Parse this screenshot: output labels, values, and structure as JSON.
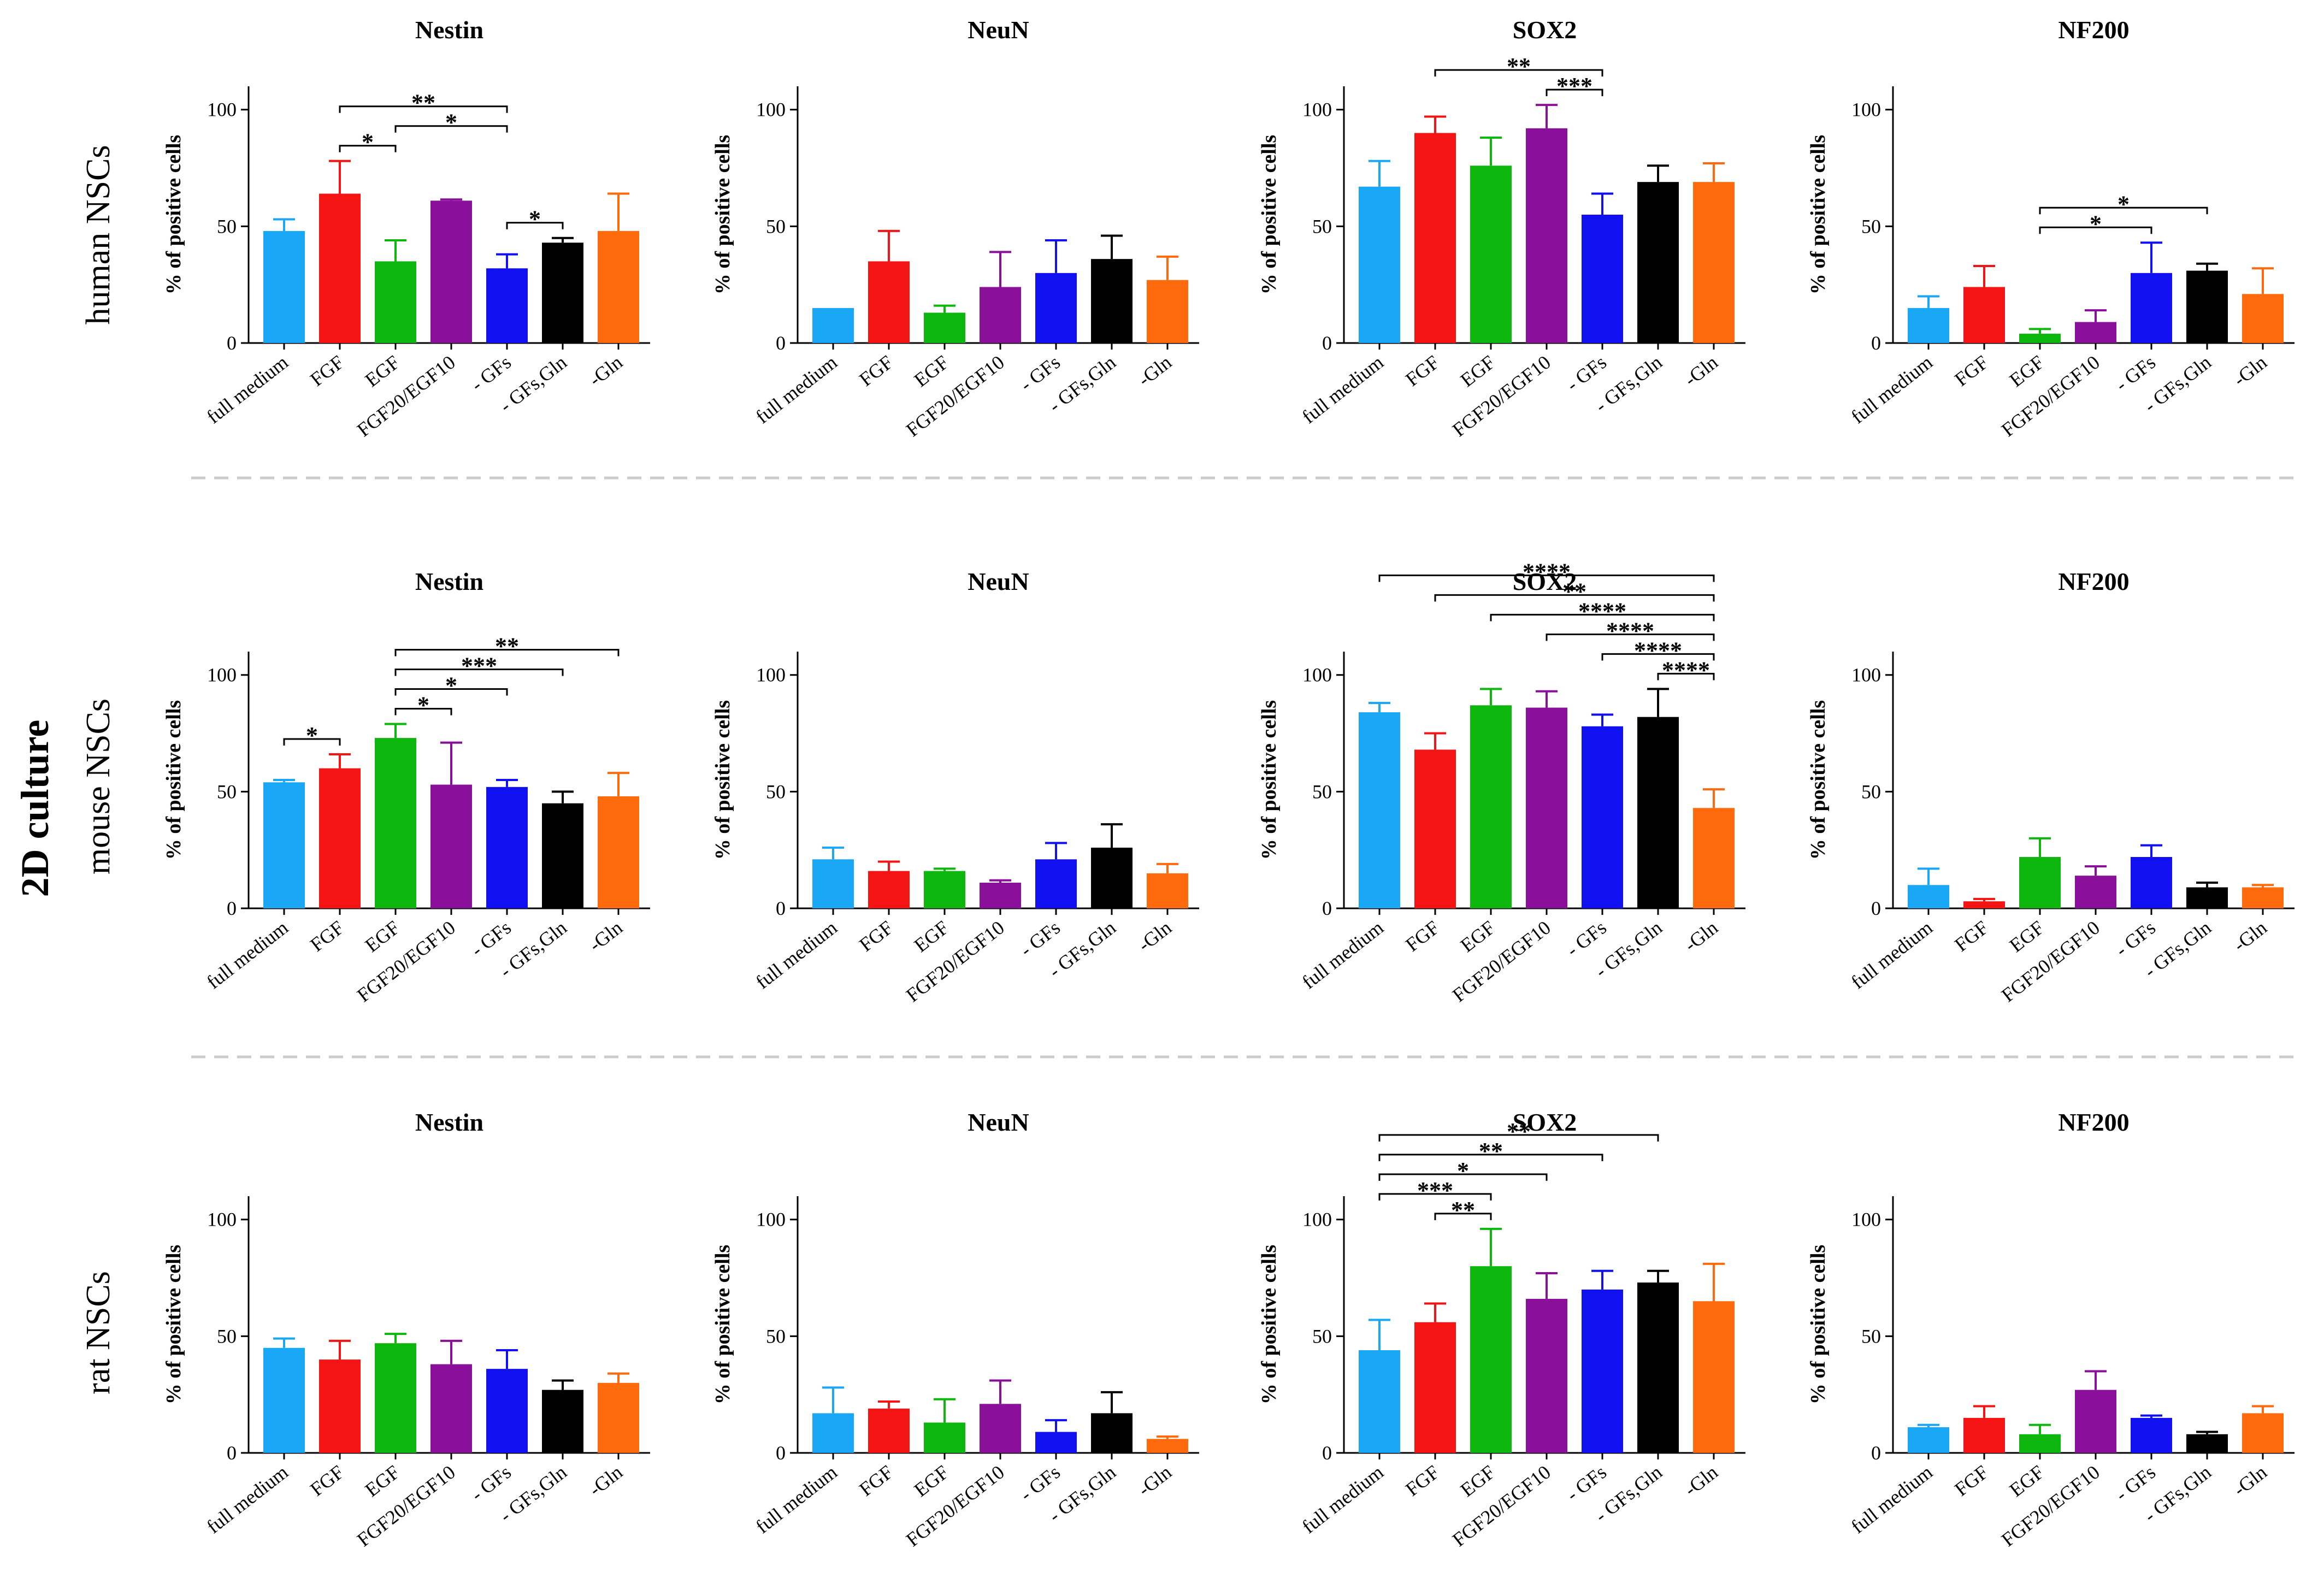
{
  "main_label": "2D culture",
  "row_labels": [
    "human NSCs",
    "mouse NSCs",
    "rat NSCs"
  ],
  "colors": {
    "full medium": "#1aa7f5",
    "FGF": "#f51414",
    "EGF": "#0db70d",
    "FGF20/EGF10": "#8a0f9a",
    "- GFs": "#1010f0",
    "- GFs,Gln": "#000000",
    "-Gln": "#ff6a0d",
    "separator": "#cccccc"
  },
  "chart_data": [
    {
      "type": "bar",
      "row": 0,
      "col": 0,
      "title": "Nestin",
      "ylabel": "% of positive cells",
      "ylim": [
        0,
        110
      ],
      "yticks": [
        0,
        50,
        100
      ],
      "categories": [
        "full medium",
        "FGF",
        "EGF",
        "FGF20/EGF10",
        "- GFs",
        "- GFs,Gln",
        "-Gln"
      ],
      "values": [
        48,
        64,
        35,
        61,
        32,
        43,
        48
      ],
      "errors": [
        5,
        14,
        9,
        0.5,
        6,
        2,
        16
      ],
      "significance": [
        {
          "from": 1,
          "to": 2,
          "label": "*"
        },
        {
          "from": 1,
          "to": 4,
          "label": "**"
        },
        {
          "from": 2,
          "to": 4,
          "label": "*"
        },
        {
          "from": 4,
          "to": 5,
          "label": "*"
        }
      ]
    },
    {
      "type": "bar",
      "row": 0,
      "col": 1,
      "title": "NeuN",
      "ylabel": "% of positive cells",
      "ylim": [
        0,
        110
      ],
      "yticks": [
        0,
        50,
        100
      ],
      "categories": [
        "full medium",
        "FGF",
        "EGF",
        "FGF20/EGF10",
        "- GFs",
        "- GFs,Gln",
        "-Gln"
      ],
      "values": [
        15,
        35,
        13,
        24,
        30,
        36,
        27
      ],
      "errors": [
        0,
        13,
        3,
        15,
        14,
        10,
        10
      ],
      "significance": []
    },
    {
      "type": "bar",
      "row": 0,
      "col": 2,
      "title": "SOX2",
      "ylabel": "% of positive cells",
      "ylim": [
        0,
        110
      ],
      "yticks": [
        0,
        50,
        100
      ],
      "categories": [
        "full medium",
        "FGF",
        "EGF",
        "FGF20/EGF10",
        "- GFs",
        "- GFs,Gln",
        "-Gln"
      ],
      "values": [
        67,
        90,
        76,
        92,
        55,
        69,
        69
      ],
      "errors": [
        11,
        7,
        12,
        10,
        9,
        7,
        8
      ],
      "significance": [
        {
          "from": 1,
          "to": 4,
          "label": "**"
        },
        {
          "from": 3,
          "to": 4,
          "label": "***"
        }
      ]
    },
    {
      "type": "bar",
      "row": 0,
      "col": 3,
      "title": "NF200",
      "ylabel": "% of positive cells",
      "ylim": [
        0,
        110
      ],
      "yticks": [
        0,
        50,
        100
      ],
      "categories": [
        "full medium",
        "FGF",
        "EGF",
        "FGF20/EGF10",
        "- GFs",
        "- GFs,Gln",
        "-Gln"
      ],
      "values": [
        15,
        24,
        4,
        9,
        30,
        31,
        21
      ],
      "errors": [
        5,
        9,
        2,
        5,
        13,
        3,
        11
      ],
      "significance": [
        {
          "from": 2,
          "to": 4,
          "label": "*"
        },
        {
          "from": 2,
          "to": 5,
          "label": "*"
        }
      ]
    },
    {
      "type": "bar",
      "row": 1,
      "col": 0,
      "title": "Nestin",
      "ylabel": "% of positive cells",
      "ylim": [
        0,
        110
      ],
      "yticks": [
        0,
        50,
        100
      ],
      "categories": [
        "full medium",
        "FGF",
        "EGF",
        "FGF20/EGF10",
        "- GFs",
        "- GFs,Gln",
        "-Gln"
      ],
      "values": [
        54,
        60,
        73,
        53,
        52,
        45,
        48
      ],
      "errors": [
        1,
        6,
        6,
        18,
        3,
        5,
        10
      ],
      "significance": [
        {
          "from": 0,
          "to": 1,
          "label": "*"
        },
        {
          "from": 2,
          "to": 3,
          "label": "*"
        },
        {
          "from": 2,
          "to": 4,
          "label": "*"
        },
        {
          "from": 2,
          "to": 5,
          "label": "***"
        },
        {
          "from": 2,
          "to": 6,
          "label": "**"
        }
      ]
    },
    {
      "type": "bar",
      "row": 1,
      "col": 1,
      "title": "NeuN",
      "ylabel": "% of positive cells",
      "ylim": [
        0,
        110
      ],
      "yticks": [
        0,
        50,
        100
      ],
      "categories": [
        "full medium",
        "FGF",
        "EGF",
        "FGF20/EGF10",
        "- GFs",
        "- GFs,Gln",
        "-Gln"
      ],
      "values": [
        21,
        16,
        16,
        11,
        21,
        26,
        15
      ],
      "errors": [
        5,
        4,
        1,
        1,
        7,
        10,
        4
      ],
      "significance": []
    },
    {
      "type": "bar",
      "row": 1,
      "col": 2,
      "title": "SOX2",
      "ylabel": "% of positive cells",
      "ylim": [
        0,
        110
      ],
      "yticks": [
        0,
        50,
        100
      ],
      "categories": [
        "full medium",
        "FGF",
        "EGF",
        "FGF20/EGF10",
        "- GFs",
        "- GFs,Gln",
        "-Gln"
      ],
      "values": [
        84,
        68,
        87,
        86,
        78,
        82,
        43
      ],
      "errors": [
        4,
        7,
        7,
        7,
        5,
        12,
        8
      ],
      "significance": [
        {
          "from": 0,
          "to": 6,
          "label": "****"
        },
        {
          "from": 1,
          "to": 6,
          "label": "**"
        },
        {
          "from": 2,
          "to": 6,
          "label": "****"
        },
        {
          "from": 3,
          "to": 6,
          "label": "****"
        },
        {
          "from": 4,
          "to": 6,
          "label": "****"
        },
        {
          "from": 5,
          "to": 6,
          "label": "****"
        }
      ]
    },
    {
      "type": "bar",
      "row": 1,
      "col": 3,
      "title": "NF200",
      "ylabel": "% of positive cells",
      "ylim": [
        0,
        110
      ],
      "yticks": [
        0,
        50,
        100
      ],
      "categories": [
        "full medium",
        "FGF",
        "EGF",
        "FGF20/EGF10",
        "- GFs",
        "- GFs,Gln",
        "-Gln"
      ],
      "values": [
        10,
        3,
        22,
        14,
        22,
        9,
        9
      ],
      "errors": [
        7,
        1,
        8,
        4,
        5,
        2,
        1
      ],
      "significance": []
    },
    {
      "type": "bar",
      "row": 2,
      "col": 0,
      "title": "Nestin",
      "ylabel": "% of positive cells",
      "ylim": [
        0,
        110
      ],
      "yticks": [
        0,
        50,
        100
      ],
      "categories": [
        "full medium",
        "FGF",
        "EGF",
        "FGF20/EGF10",
        "- GFs",
        "- GFs,Gln",
        "-Gln"
      ],
      "values": [
        45,
        40,
        47,
        38,
        36,
        27,
        30
      ],
      "errors": [
        4,
        8,
        4,
        10,
        8,
        4,
        4
      ],
      "significance": []
    },
    {
      "type": "bar",
      "row": 2,
      "col": 1,
      "title": "NeuN",
      "ylabel": "% of positive cells",
      "ylim": [
        0,
        110
      ],
      "yticks": [
        0,
        50,
        100
      ],
      "categories": [
        "full medium",
        "FGF",
        "EGF",
        "FGF20/EGF10",
        "- GFs",
        "- GFs,Gln",
        "-Gln"
      ],
      "values": [
        17,
        19,
        13,
        21,
        9,
        17,
        6
      ],
      "errors": [
        11,
        3,
        10,
        10,
        5,
        9,
        1
      ],
      "significance": []
    },
    {
      "type": "bar",
      "row": 2,
      "col": 2,
      "title": "SOX2",
      "ylabel": "% of positive cells",
      "ylim": [
        0,
        110
      ],
      "yticks": [
        0,
        50,
        100
      ],
      "categories": [
        "full medium",
        "FGF",
        "EGF",
        "FGF20/EGF10",
        "- GFs",
        "- GFs,Gln",
        "-Gln"
      ],
      "values": [
        44,
        56,
        80,
        66,
        70,
        73,
        65
      ],
      "errors": [
        13,
        8,
        16,
        11,
        8,
        5,
        16
      ],
      "significance": [
        {
          "from": 0,
          "to": 2,
          "label": "***"
        },
        {
          "from": 0,
          "to": 3,
          "label": "*"
        },
        {
          "from": 0,
          "to": 4,
          "label": "**"
        },
        {
          "from": 0,
          "to": 5,
          "label": "**"
        },
        {
          "from": 1,
          "to": 2,
          "label": "**"
        }
      ]
    },
    {
      "type": "bar",
      "row": 2,
      "col": 3,
      "title": "NF200",
      "ylabel": "% of positive cells",
      "ylim": [
        0,
        110
      ],
      "yticks": [
        0,
        50,
        100
      ],
      "categories": [
        "full medium",
        "FGF",
        "EGF",
        "FGF20/EGF10",
        "- GFs",
        "- GFs,Gln",
        "-Gln"
      ],
      "values": [
        11,
        15,
        8,
        27,
        15,
        8,
        17
      ],
      "errors": [
        1,
        5,
        4,
        8,
        1,
        1,
        3
      ],
      "significance": []
    }
  ]
}
